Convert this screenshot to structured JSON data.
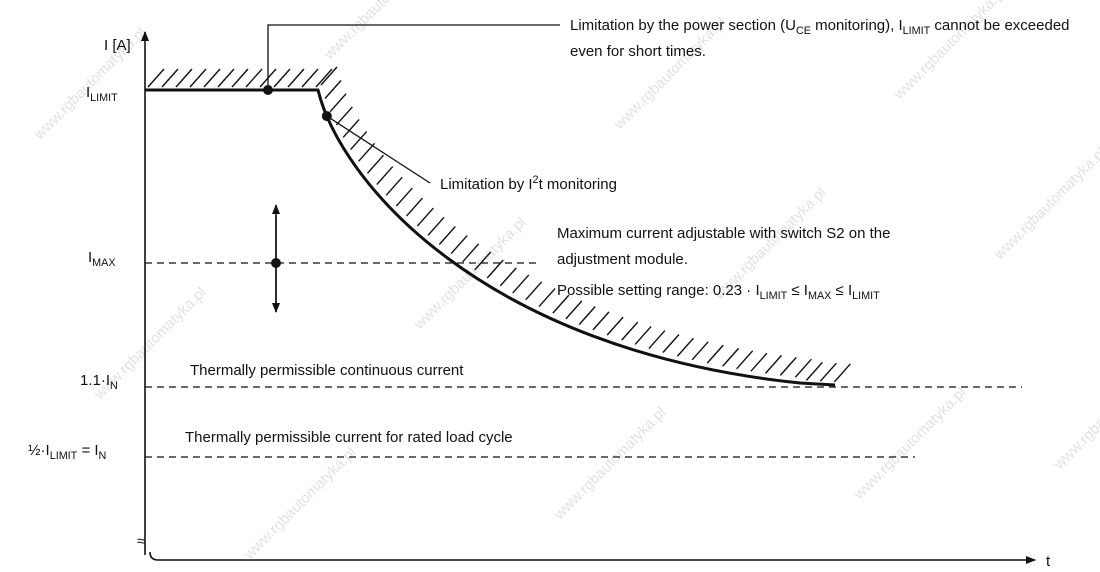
{
  "axis": {
    "y_label": [
      {
        "text": "I [A]"
      }
    ],
    "x_label": [
      {
        "text": "t"
      }
    ],
    "break": "≈"
  },
  "levels": [
    {
      "label": [
        {
          "text": "I"
        },
        {
          "sub": "LIMIT"
        }
      ]
    },
    {
      "label": [
        {
          "text": "I"
        },
        {
          "sub": "MAX"
        }
      ]
    },
    {
      "label": [
        {
          "text": "1.1·I"
        },
        {
          "sub": "N"
        }
      ]
    },
    {
      "label": [
        {
          "text": "½·I"
        },
        {
          "sub": "LIMIT"
        },
        {
          "text": " = I"
        },
        {
          "sub": "N"
        }
      ]
    }
  ],
  "annotations": [
    {
      "lines": [
        [
          {
            "text": "Limitation by the power section (U"
          },
          {
            "sub": "CE"
          },
          {
            "text": " monitoring), I"
          },
          {
            "sub": "LIMIT"
          },
          {
            "text": " cannot be exceeded"
          }
        ],
        [
          {
            "text": "even for short times."
          }
        ]
      ]
    },
    {
      "lines": [
        [
          {
            "text": "Limitation by I"
          },
          {
            "sup": "2"
          },
          {
            "text": "t monitoring"
          }
        ]
      ]
    },
    {
      "lines": [
        [
          {
            "text": "Maximum current adjustable with switch S2 on the"
          }
        ],
        [
          {
            "text": "adjustment module."
          }
        ],
        [
          {
            "text": "Possible setting range: 0.23 · I"
          },
          {
            "sub": "LIMIT"
          },
          {
            "text": " ≤  I"
          },
          {
            "sub": "MAX"
          },
          {
            "text": " ≤ I"
          },
          {
            "sub": "LIMIT"
          }
        ]
      ]
    },
    {
      "lines": [
        [
          {
            "text": "Thermally permissible continuous current"
          }
        ]
      ]
    },
    {
      "lines": [
        [
          {
            "text": "Thermally permissible current for rated load cycle"
          }
        ]
      ]
    }
  ],
  "watermark": "www.rgbautomatyka.pl"
}
